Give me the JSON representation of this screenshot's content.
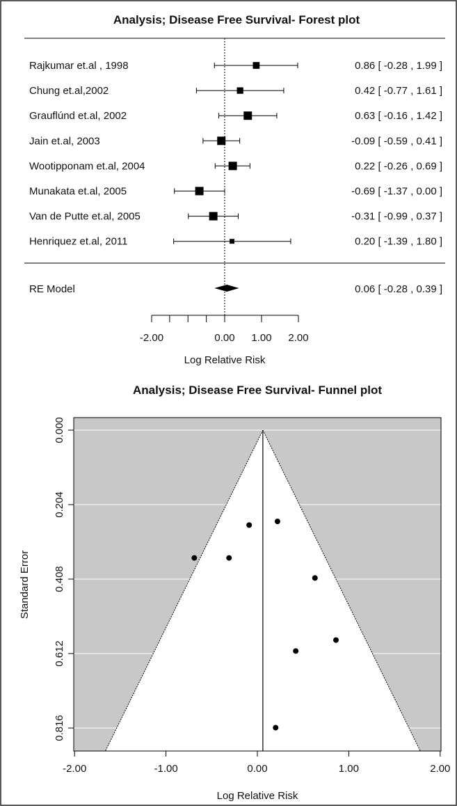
{
  "forest": {
    "title": "Analysis; Disease Free Survival- Forest plot",
    "xlabel": "Log Relative Risk",
    "x_ticks": [
      "-2.00",
      "0.00",
      "1.00",
      "2.00"
    ],
    "summary_label": "RE Model",
    "summary_ci_text": "0.06 [ -0.28 , 0.39 ]"
  },
  "funnel": {
    "title": "Analysis; Disease Free Survival- Funnel plot",
    "xlabel": "Log Relative Risk",
    "ylabel": "Standard Error",
    "x_ticks": [
      "-2.00",
      "-1.00",
      "0.00",
      "1.00",
      "2.00"
    ],
    "y_ticks": [
      "0.000",
      "0.204",
      "0.408",
      "0.612",
      "0.816"
    ]
  },
  "chart_data": [
    {
      "type": "forest",
      "title": "Analysis; Disease Free Survival- Forest plot",
      "xlabel": "Log Relative Risk",
      "studies": [
        {
          "label": "Rajkumar et.al , 1998",
          "estimate": 0.86,
          "lower": -0.28,
          "upper": 1.99,
          "ci_text": "0.86 [ -0.28 , 1.99 ]"
        },
        {
          "label": "Chung et.al,2002",
          "estimate": 0.42,
          "lower": -0.77,
          "upper": 1.61,
          "ci_text": "0.42 [ -0.77 , 1.61 ]"
        },
        {
          "label": "Grauflúnd et.al, 2002",
          "estimate": 0.63,
          "lower": -0.16,
          "upper": 1.42,
          "ci_text": "0.63 [ -0.16 , 1.42 ]"
        },
        {
          "label": "Jain et.al, 2003",
          "estimate": -0.09,
          "lower": -0.59,
          "upper": 0.41,
          "ci_text": "-0.09 [ -0.59 , 0.41 ]"
        },
        {
          "label": "Wootipponam et.al, 2004",
          "estimate": 0.22,
          "lower": -0.26,
          "upper": 0.69,
          "ci_text": "0.22 [ -0.26 , 0.69 ]"
        },
        {
          "label": "Munakata et.al, 2005",
          "estimate": -0.69,
          "lower": -1.37,
          "upper": 0.0,
          "ci_text": "-0.69 [ -1.37 , 0.00 ]"
        },
        {
          "label": "Van de Putte et.al, 2005",
          "estimate": -0.31,
          "lower": -0.99,
          "upper": 0.37,
          "ci_text": "-0.31 [ -0.99 , 0.37 ]"
        },
        {
          "label": "Henriquez et.al, 2011",
          "estimate": 0.2,
          "lower": -1.39,
          "upper": 1.8,
          "ci_text": "0.20 [ -1.39 , 1.80 ]"
        }
      ],
      "summary": {
        "label": "RE Model",
        "estimate": 0.06,
        "lower": -0.28,
        "upper": 0.39
      },
      "x_ticks": [
        -2,
        0,
        1,
        2
      ],
      "reference_line": 0
    },
    {
      "type": "scatter",
      "subtype": "funnel",
      "title": "Analysis; Disease Free Survival- Funnel plot",
      "xlabel": "Log Relative Risk",
      "ylabel": "Standard Error",
      "xlim": [
        -2.1,
        2.1
      ],
      "ylim": [
        0.0,
        0.84
      ],
      "y_reversed": true,
      "x_ticks": [
        -2,
        -1,
        0,
        1,
        2
      ],
      "y_ticks": [
        0.0,
        0.204,
        0.408,
        0.612,
        0.816
      ],
      "center": 0.06,
      "points": [
        {
          "x": 0.86,
          "y": 0.575
        },
        {
          "x": 0.42,
          "y": 0.605
        },
        {
          "x": 0.63,
          "y": 0.405
        },
        {
          "x": -0.09,
          "y": 0.26
        },
        {
          "x": 0.22,
          "y": 0.25
        },
        {
          "x": -0.69,
          "y": 0.35
        },
        {
          "x": -0.31,
          "y": 0.35
        },
        {
          "x": 0.2,
          "y": 0.815
        }
      ]
    }
  ]
}
